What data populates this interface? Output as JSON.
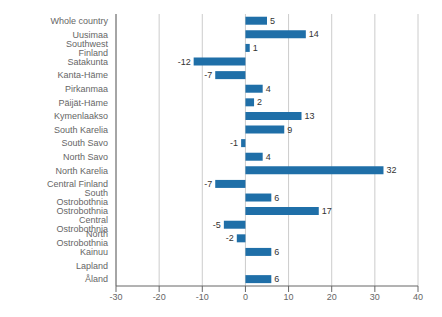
{
  "chart_data": {
    "type": "bar",
    "orientation": "horizontal",
    "categories": [
      "Whole country",
      "Uusimaa",
      "Southwest Finland",
      "Satakunta",
      "Kanta-Häme",
      "Pirkanmaa",
      "Päijät-Häme",
      "Kymenlaakso",
      "South Karelia",
      "South Savo",
      "North Savo",
      "North Karelia",
      "Central Finland",
      "South Ostrobothnia",
      "Ostrobothnia",
      "Central Ostrobothnia",
      "North Ostrobothnia",
      "Kainuu",
      "Lapland",
      "Åland"
    ],
    "values": [
      5,
      14,
      1,
      -12,
      -7,
      4,
      2,
      13,
      9,
      -1,
      4,
      32,
      -7,
      6,
      17,
      -5,
      -2,
      6,
      0,
      6
    ],
    "color": "#1f6fa8",
    "xlim": [
      -30,
      40
    ],
    "xticks": [
      -30,
      -20,
      -10,
      0,
      10,
      20,
      30,
      40
    ],
    "grid": true,
    "data_labels": true
  }
}
